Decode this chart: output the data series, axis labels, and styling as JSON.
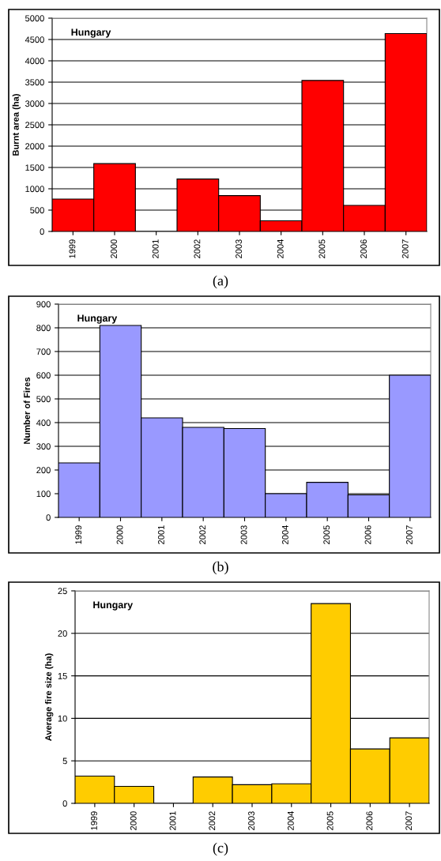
{
  "chart_data": [
    {
      "type": "bar",
      "ylabel": "Burnt area (ha)",
      "categories": [
        "1999",
        "2000",
        "2001",
        "2002",
        "2003",
        "2004",
        "2005",
        "2006",
        "2007"
      ],
      "values": [
        760,
        1590,
        0,
        1230,
        840,
        250,
        3540,
        610,
        4640
      ],
      "color": "#ff0000",
      "ylim": [
        0,
        5000
      ],
      "yticks": [
        0,
        500,
        1000,
        1500,
        2000,
        2500,
        3000,
        3500,
        4000,
        4500,
        5000
      ],
      "grid": "y",
      "annotations": [
        "Hungary",
        "(a)"
      ]
    },
    {
      "type": "bar",
      "ylabel": "Number of Fires",
      "categories": [
        "1999",
        "2000",
        "2001",
        "2002",
        "2003",
        "2004",
        "2005",
        "2006",
        "2007"
      ],
      "values": [
        230,
        810,
        420,
        380,
        375,
        100,
        148,
        95,
        600
      ],
      "color": "#9999ff",
      "ylim": [
        0,
        900
      ],
      "yticks": [
        0,
        100,
        200,
        300,
        400,
        500,
        600,
        700,
        800,
        900
      ],
      "grid": "y",
      "annotations": [
        "Hungary",
        "(b)"
      ]
    },
    {
      "type": "bar",
      "ylabel": "Average fire size (ha)",
      "categories": [
        "1999",
        "2000",
        "2001",
        "2002",
        "2003",
        "2004",
        "2005",
        "2006",
        "2007"
      ],
      "values": [
        3.2,
        2.0,
        0,
        3.1,
        2.2,
        2.3,
        23.5,
        6.4,
        7.7
      ],
      "color": "#ffcc00",
      "ylim": [
        0,
        25
      ],
      "yticks": [
        0,
        5,
        10,
        15,
        20,
        25
      ],
      "grid": "y",
      "annotations": [
        "Hungary",
        "(c)"
      ]
    }
  ]
}
